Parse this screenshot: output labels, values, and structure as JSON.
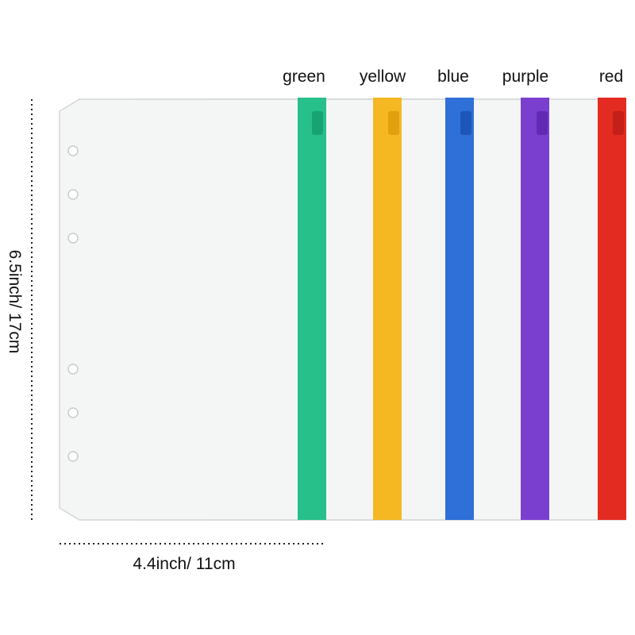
{
  "labels": [
    "green",
    "yellow",
    "blue",
    "purple",
    "red"
  ],
  "height_label": "6.5inch/ 17cm",
  "width_label": "4.4inch/ 11cm"
}
